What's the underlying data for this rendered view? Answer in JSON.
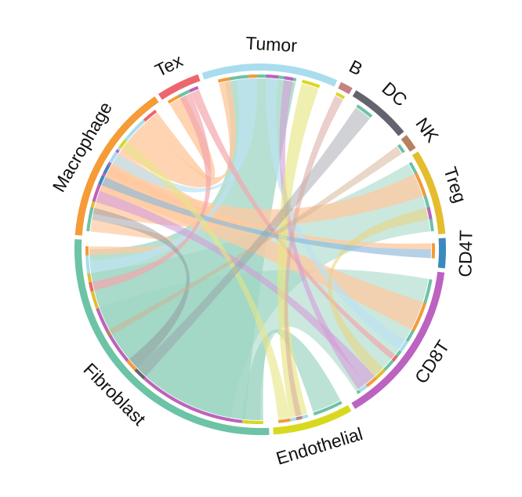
{
  "chart_data": {
    "type": "chord",
    "sectors": [
      {
        "name": "Tumor",
        "start": 341.7,
        "end": 24.5,
        "color": "#A9DDEE"
      },
      {
        "name": "B",
        "start": 25.8,
        "end": 29.8,
        "color": "#C4837D"
      },
      {
        "name": "DC",
        "start": 31.1,
        "end": 50.7,
        "color": "#62636D"
      },
      {
        "name": "NK",
        "start": 52.0,
        "end": 56.9,
        "color": "#B5825F"
      },
      {
        "name": "Treg",
        "start": 58.2,
        "end": 85.2,
        "color": "#E4BD2E"
      },
      {
        "name": "CD4T",
        "start": 86.5,
        "end": 95.9,
        "color": "#3A8AC0"
      },
      {
        "name": "CD8T",
        "start": 97.2,
        "end": 149.3,
        "color": "#BC62C0"
      },
      {
        "name": "Endothelial",
        "start": 150.6,
        "end": 175.9,
        "color": "#D8D91F"
      },
      {
        "name": "Fibroblast",
        "start": 177.2,
        "end": 273.1,
        "color": "#6CC3A6"
      },
      {
        "name": "Macrophage",
        "start": 274.4,
        "end": 325.4,
        "color": "#F59B37"
      },
      {
        "name": "Tex",
        "start": 326.7,
        "end": 340.4,
        "color": "#EC6670"
      }
    ],
    "links": [
      {
        "from": "Fibroblast",
        "to": "Tumor",
        "s": [
          185,
          270
        ],
        "t": [
          348,
          12
        ],
        "color": "#9FD5C3",
        "opacity": 0.75
      },
      {
        "from": "Fibroblast",
        "to": "Treg",
        "s": [
          190,
          262
        ],
        "t": [
          60,
          84
        ],
        "color": "#9FD5C3",
        "opacity": 0.55
      },
      {
        "from": "Fibroblast",
        "to": "CD8T",
        "s": [
          180,
          250
        ],
        "t": [
          100,
          146
        ],
        "color": "#9FD5C3",
        "opacity": 0.55
      },
      {
        "from": "Fibroblast",
        "to": "Endothelial",
        "s": [
          179,
          186
        ],
        "t": [
          152,
          162
        ],
        "color": "#9FD5C3",
        "opacity": 0.7
      },
      {
        "from": "Macrophage",
        "to": "Treg",
        "s": [
          282,
          300
        ],
        "t": [
          64,
          72
        ],
        "color": "#FFC9A0",
        "opacity": 0.75
      },
      {
        "from": "Macrophage",
        "to": "CD8T",
        "s": [
          290,
          305
        ],
        "t": [
          108,
          118
        ],
        "color": "#FFC9A0",
        "opacity": 0.75
      },
      {
        "from": "Macrophage",
        "to": "Tumor",
        "s": [
          305,
          318
        ],
        "t": [
          346,
          350
        ],
        "color": "#FFC9A0",
        "opacity": 0.8
      },
      {
        "from": "Macrophage",
        "to": "Tex",
        "s": [
          318,
          323
        ],
        "t": [
          328,
          334
        ],
        "color": "#FFC9A0",
        "opacity": 0.8
      },
      {
        "from": "Macrophage",
        "to": "CD4T",
        "s": [
          296,
          299
        ],
        "t": [
          88,
          90
        ],
        "color": "#FFC9A0",
        "opacity": 0.8
      },
      {
        "from": "Macrophage",
        "to": "Fibroblast",
        "s": [
          276,
          280
        ],
        "t": [
          268,
          271
        ],
        "color": "#FFC9A0",
        "opacity": 0.7
      },
      {
        "from": "Tumor",
        "to": "CD8T",
        "s": [
          2,
          6
        ],
        "t": [
          122,
          126
        ],
        "color": "#BEE3F2",
        "opacity": 0.7
      },
      {
        "from": "Tumor",
        "to": "Fibroblast",
        "s": [
          352,
          356
        ],
        "t": [
          262,
          266
        ],
        "color": "#BEE3F2",
        "opacity": 0.7
      },
      {
        "from": "Tumor",
        "to": "Macrophage",
        "s": [
          356,
          359
        ],
        "t": [
          300,
          304
        ],
        "color": "#BEE3F2",
        "opacity": 0.7
      },
      {
        "from": "Tex",
        "to": "Fibroblast",
        "s": [
          332,
          336
        ],
        "t": [
          256,
          259
        ],
        "color": "#F4A6AD",
        "opacity": 0.7
      },
      {
        "from": "Tex",
        "to": "CD8T",
        "s": [
          336,
          339
        ],
        "t": [
          128,
          130
        ],
        "color": "#F4A6AD",
        "opacity": 0.7
      },
      {
        "from": "Fibroblast",
        "to": "Macrophage",
        "s": [
          226,
          230
        ],
        "t": [
          280,
          284
        ],
        "color": "#8E8E96",
        "opacity": 0.45
      },
      {
        "from": "Treg",
        "to": "CD8T",
        "s": [
          76,
          80
        ],
        "t": [
          134,
          138
        ],
        "color": "#EBD27A",
        "opacity": 0.55
      },
      {
        "from": "CD8T",
        "to": "Macrophage",
        "s": [
          138,
          142
        ],
        "t": [
          286,
          290
        ],
        "color": "#D69BD8",
        "opacity": 0.6
      },
      {
        "from": "CD8T",
        "to": "Tumor",
        "s": [
          142,
          145
        ],
        "t": [
          8,
          11
        ],
        "color": "#D69BD8",
        "opacity": 0.6
      },
      {
        "from": "CD4T",
        "to": "Macrophage",
        "s": [
          90,
          93
        ],
        "t": [
          292,
          295
        ],
        "color": "#8DB8DA",
        "opacity": 0.65
      },
      {
        "from": "Endothelial",
        "to": "Tumor",
        "s": [
          164,
          170
        ],
        "t": [
          14,
          20
        ],
        "color": "#E6E684",
        "opacity": 0.65
      },
      {
        "from": "Endothelial",
        "to": "Macrophage",
        "s": [
          170,
          174
        ],
        "t": [
          306,
          309
        ],
        "color": "#E6E684",
        "opacity": 0.6
      },
      {
        "from": "DC",
        "to": "Fibroblast",
        "s": [
          34,
          40
        ],
        "t": [
          222,
          226
        ],
        "color": "#9A9BA3",
        "opacity": 0.45
      },
      {
        "from": "B",
        "to": "Endothelial",
        "s": [
          26,
          29
        ],
        "t": [
          166,
          168
        ],
        "color": "#D8A8A3",
        "opacity": 0.55
      },
      {
        "from": "NK",
        "to": "Fibroblast",
        "s": [
          53,
          56
        ],
        "t": [
          240,
          242
        ],
        "color": "#D4B08F",
        "opacity": 0.5
      }
    ]
  }
}
